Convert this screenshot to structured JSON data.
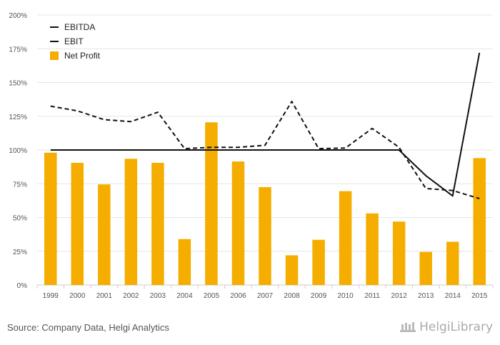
{
  "chart_data": {
    "type": "bar",
    "categories": [
      "1999",
      "2000",
      "2001",
      "2002",
      "2003",
      "2004",
      "2005",
      "2006",
      "2007",
      "2008",
      "2009",
      "2010",
      "2011",
      "2012",
      "2013",
      "2014",
      "2015"
    ],
    "series": [
      {
        "name": "EBITDA",
        "kind": "line",
        "style": "dashed",
        "values": [
          132.5,
          129,
          122.5,
          121,
          128,
          101,
          102,
          102,
          103.5,
          136,
          101,
          101.5,
          116,
          102,
          71.5,
          70,
          64
        ]
      },
      {
        "name": "EBIT",
        "kind": "line",
        "style": "solid",
        "values": [
          100,
          100,
          100,
          100,
          100,
          100,
          100,
          100,
          100,
          100,
          100,
          100,
          100,
          100,
          81,
          66,
          172
        ]
      },
      {
        "name": "Net Profit",
        "kind": "bar",
        "values": [
          98,
          90.5,
          74.5,
          93.5,
          90.5,
          34,
          120.5,
          91.5,
          72.5,
          22,
          33.5,
          69.5,
          53,
          47,
          24.5,
          32,
          94
        ]
      }
    ],
    "ylim": [
      0,
      200
    ],
    "yticks": [
      0,
      25,
      50,
      75,
      100,
      125,
      150,
      175,
      200
    ],
    "ytick_labels": [
      "0%",
      "25%",
      "50%",
      "75%",
      "100%",
      "125%",
      "150%",
      "175%",
      "200%"
    ],
    "grid": true,
    "legend_position": "top-left",
    "colors": {
      "bar": "#f5ad00",
      "line": "#111111",
      "grid": "#e6e6e6"
    }
  },
  "footer": {
    "source": "Source: Company Data, Helgi Analytics",
    "brand": "HelgiLibrary"
  }
}
